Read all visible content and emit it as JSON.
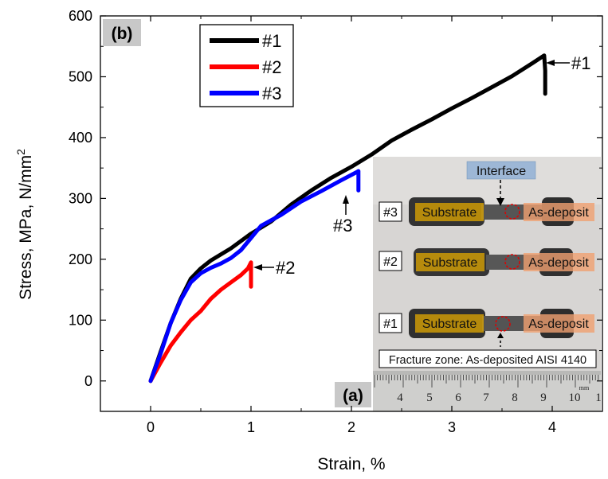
{
  "chart_data": {
    "type": "line",
    "panel_label": "(b)",
    "xlabel": "Strain, %",
    "ylabel": "Stress, MPa, N/mm",
    "ylabel_sup": "2",
    "xlim": [
      -0.5,
      4.5
    ],
    "ylim": [
      -50,
      600
    ],
    "xticks": [
      0,
      1,
      2,
      3,
      4
    ],
    "yticks": [
      0,
      100,
      200,
      300,
      400,
      500,
      600
    ],
    "grid": false,
    "legend_position": "top-left",
    "series": [
      {
        "name": "#1",
        "color": "#000000",
        "x": [
          0.0,
          0.1,
          0.2,
          0.3,
          0.4,
          0.5,
          0.6,
          0.7,
          0.8,
          0.9,
          1.0,
          1.2,
          1.4,
          1.6,
          1.8,
          2.0,
          2.2,
          2.4,
          2.6,
          2.8,
          3.0,
          3.2,
          3.4,
          3.6,
          3.8,
          3.92,
          3.93,
          3.93
        ],
        "y": [
          0,
          48,
          95,
          135,
          168,
          185,
          198,
          208,
          218,
          230,
          242,
          262,
          290,
          313,
          334,
          352,
          372,
          395,
          413,
          430,
          448,
          465,
          483,
          501,
          522,
          535,
          510,
          472
        ]
      },
      {
        "name": "#2",
        "color": "#ff0000",
        "x": [
          0.0,
          0.1,
          0.2,
          0.3,
          0.4,
          0.5,
          0.6,
          0.7,
          0.8,
          0.9,
          0.97,
          1.0,
          1.0
        ],
        "y": [
          0,
          30,
          58,
          80,
          100,
          115,
          135,
          150,
          162,
          174,
          185,
          195,
          155
        ]
      },
      {
        "name": "#3",
        "color": "#0000ff",
        "x": [
          0.0,
          0.1,
          0.2,
          0.3,
          0.4,
          0.5,
          0.6,
          0.7,
          0.8,
          0.9,
          1.0,
          1.1,
          1.3,
          1.5,
          1.7,
          1.9,
          2.05,
          2.07,
          2.07
        ],
        "y": [
          0,
          45,
          95,
          133,
          162,
          177,
          186,
          193,
          202,
          215,
          235,
          255,
          273,
          295,
          312,
          330,
          343,
          345,
          313
        ]
      }
    ],
    "annotations": [
      {
        "text": "#1",
        "x": 3.93,
        "y": 525
      },
      {
        "text": "#2",
        "x": 1.0,
        "y": 190
      },
      {
        "text": "#3",
        "x": 2.07,
        "y": 312
      }
    ],
    "inset": {
      "panel_label": "(a)",
      "interface_label": "Interface",
      "samples": [
        "#3",
        "#2",
        "#1"
      ],
      "substrate_label": "Substrate",
      "deposit_label": "As-deposit",
      "fracture_label": "Fracture zone: As-deposited AISI 4140",
      "ruler_numbers": [
        "4",
        "5",
        "6",
        "7",
        "8",
        "9",
        "10",
        "1"
      ],
      "ruler_unit": "mm"
    }
  }
}
